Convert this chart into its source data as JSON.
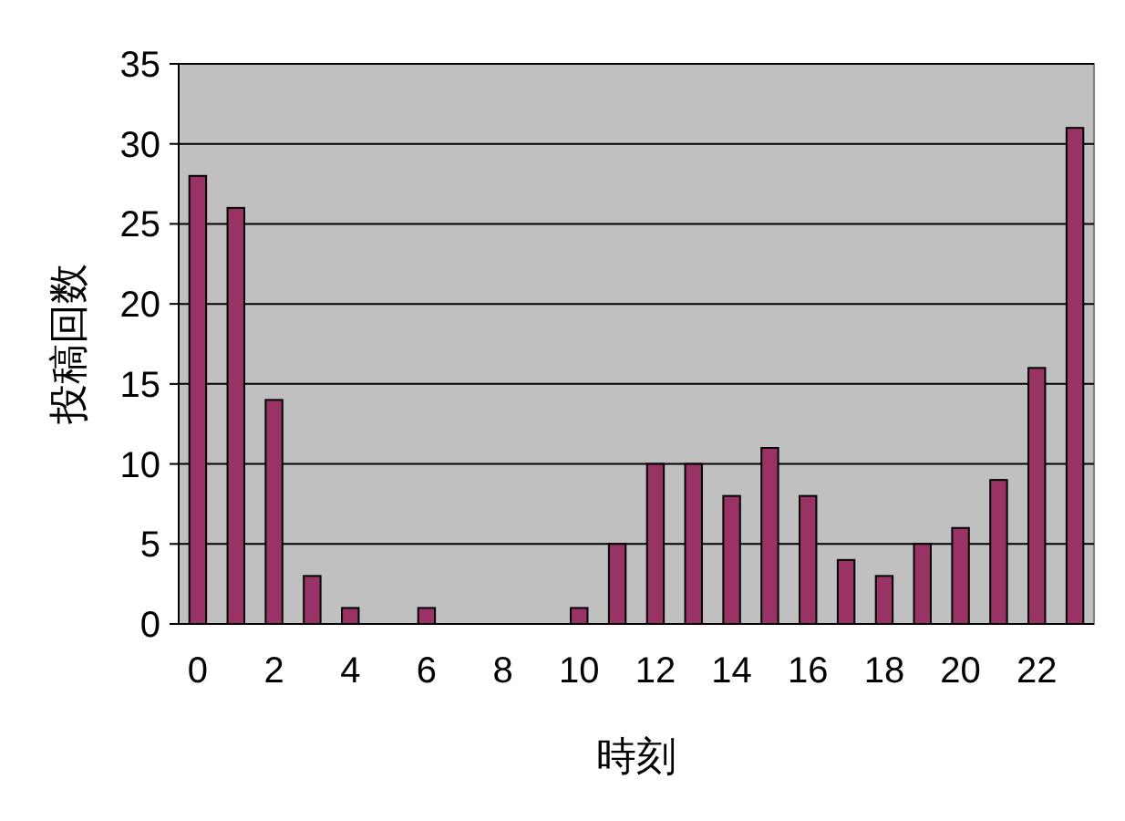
{
  "chart_data": {
    "type": "bar",
    "xlabel": "時刻",
    "ylabel": "投稿回数",
    "categories": [
      "0",
      null,
      "2",
      null,
      "4",
      null,
      "6",
      null,
      "8",
      null,
      "10",
      null,
      "12",
      null,
      "14",
      null,
      "16",
      null,
      "18",
      null,
      "20",
      null,
      "22",
      null
    ],
    "values": [
      28,
      26,
      14,
      3,
      1,
      0,
      1,
      0,
      0,
      0,
      1,
      5,
      10,
      10,
      8,
      11,
      8,
      4,
      3,
      5,
      6,
      9,
      16,
      31
    ],
    "color": "#993366",
    "ylim": [
      0,
      35
    ],
    "yticks": [
      0,
      5,
      10,
      15,
      20,
      25,
      30,
      35
    ],
    "grid": "y"
  }
}
